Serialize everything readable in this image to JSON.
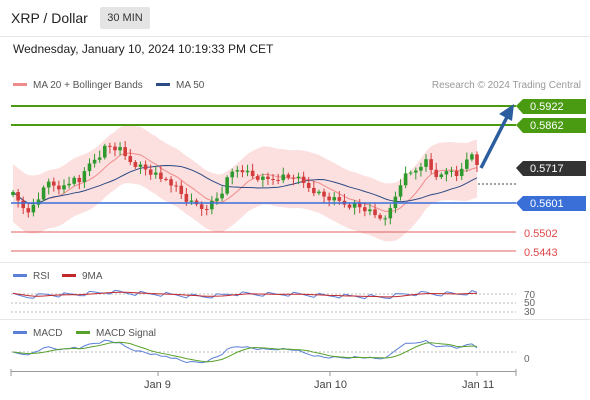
{
  "header": {
    "title": "XRP / Dollar",
    "timeframe": "30 MIN"
  },
  "timestamp": "Wednesday, January 10, 2024 10:19:33 PM CET",
  "legend": {
    "ma20": "MA 20 + Bollinger Bands",
    "ma50": "MA 50",
    "ma20_color": "#f08c8c",
    "ma50_color": "#2c4b84"
  },
  "copyright": "Research © 2024 Trading Central",
  "price_levels": [
    {
      "value": "0.5922",
      "kind": "resistance",
      "color": "#4a9b12"
    },
    {
      "value": "0.5862",
      "kind": "resistance",
      "color": "#4a9b12"
    },
    {
      "value": "0.5717",
      "kind": "current",
      "color": "#333333"
    },
    {
      "value": "0.5601",
      "kind": "pivot",
      "color": "#3a6fd8"
    },
    {
      "value": "0.5502",
      "kind": "support",
      "color": "#e04747"
    },
    {
      "value": "0.5443",
      "kind": "support",
      "color": "#e04747"
    }
  ],
  "rsi_panel": {
    "label": "RSI",
    "ma_label": "9MA",
    "levels": [
      "70",
      "50",
      "30"
    ]
  },
  "macd_panel": {
    "label": "MACD",
    "signal_label": "MACD Signal",
    "zero": "0"
  },
  "x_axis": [
    "Jan 9",
    "Jan 10",
    "Jan 11"
  ],
  "colors": {
    "up": "#2e9a2e",
    "down": "#d23c3c",
    "band": "#fbd9d9",
    "rsi": "#5b7fd6",
    "rsi_ma": "#c0282c",
    "macd": "#5b7fd6",
    "signal": "#58a12a"
  }
}
